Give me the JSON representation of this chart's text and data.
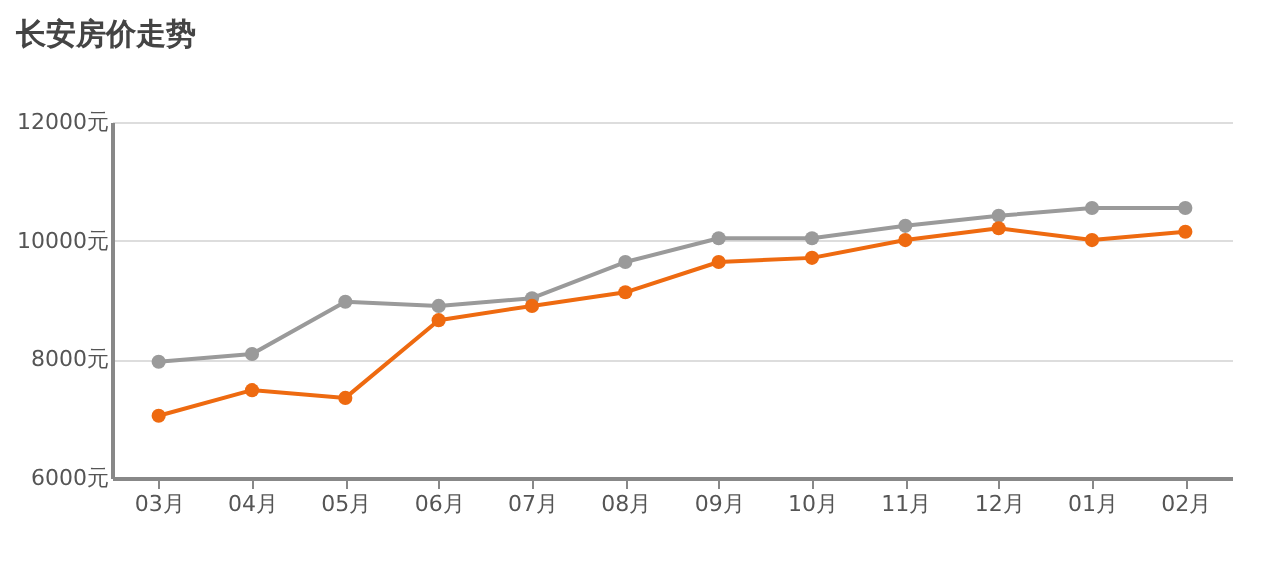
{
  "chart_data": {
    "type": "line",
    "title": "长安房价走势",
    "categories": [
      "03月",
      "04月",
      "05月",
      "06月",
      "07月",
      "08月",
      "09月",
      "10月",
      "11月",
      "12月",
      "01月",
      "02月"
    ],
    "series": [
      {
        "color": "#9a9a9a",
        "values": [
          7960,
          8090,
          8970,
          8900,
          9030,
          9640,
          10040,
          10040,
          10250,
          10420,
          10550,
          10550
        ]
      },
      {
        "color": "#ee6a10",
        "values": [
          7050,
          7480,
          7350,
          8660,
          8900,
          9130,
          9640,
          9710,
          10010,
          10210,
          10010,
          10150
        ]
      }
    ],
    "ylim": [
      6000,
      12000
    ],
    "yticks": [
      {
        "value": 6000,
        "label": "6000元"
      },
      {
        "value": 8000,
        "label": "8000元"
      },
      {
        "value": 10000,
        "label": "10000元"
      },
      {
        "value": 12000,
        "label": "12000元"
      }
    ],
    "grid": "y",
    "marker": "circle",
    "line_style": "solid",
    "legend": false
  }
}
